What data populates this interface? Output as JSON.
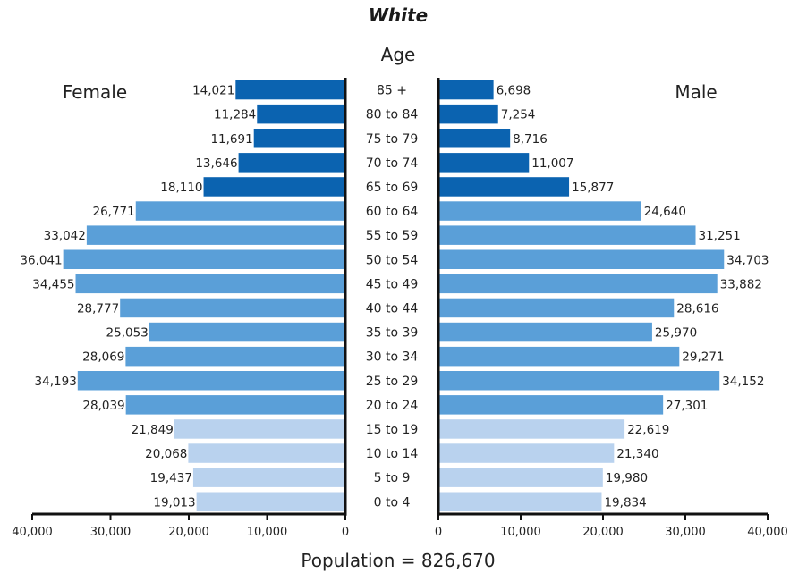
{
  "chart_data": {
    "type": "bar",
    "orientation": "horizontal",
    "title": "White",
    "center_label": "Age",
    "left_label": "Female",
    "right_label": "Male",
    "footer": "Population = 826,670",
    "categories": [
      "85 +",
      "80 to 84",
      "75 to 79",
      "70 to 74",
      "65 to 69",
      "60 to 64",
      "55 to 59",
      "50 to 54",
      "45 to 49",
      "40 to 44",
      "35 to 39",
      "30 to 34",
      "25 to 29",
      "20 to 24",
      "15 to 19",
      "10 to 14",
      "5 to 9",
      "0 to 4"
    ],
    "series": [
      {
        "name": "Female",
        "side": "left",
        "values": [
          14021,
          11284,
          11691,
          13646,
          18110,
          26771,
          33042,
          36041,
          34455,
          28777,
          25053,
          28069,
          34193,
          28039,
          21849,
          20068,
          19437,
          19013
        ],
        "value_labels": [
          "14,021",
          "11,284",
          "11,691",
          "13,646",
          "18,110",
          "26,771",
          "33,042",
          "36,041",
          "34,455",
          "28,777",
          "25,053",
          "28,069",
          "34,193",
          "28,039",
          "21,849",
          "20,068",
          "19,437",
          "19,013"
        ]
      },
      {
        "name": "Male",
        "side": "right",
        "values": [
          6698,
          7254,
          8716,
          11007,
          15877,
          24640,
          31251,
          34703,
          33882,
          28616,
          25970,
          29271,
          34152,
          27301,
          22619,
          21340,
          19980,
          19834
        ],
        "value_labels": [
          "6,698",
          "7,254",
          "8,716",
          "11,007",
          "15,877",
          "24,640",
          "31,251",
          "34,703",
          "33,882",
          "28,616",
          "25,970",
          "29,271",
          "34,152",
          "27,301",
          "22,619",
          "21,340",
          "19,980",
          "19,834"
        ]
      }
    ],
    "age_group_colors": [
      "#0b63b0",
      "#0b63b0",
      "#0b63b0",
      "#0b63b0",
      "#0b63b0",
      "#5a9fd8",
      "#5a9fd8",
      "#5a9fd8",
      "#5a9fd8",
      "#5a9fd8",
      "#5a9fd8",
      "#5a9fd8",
      "#5a9fd8",
      "#5a9fd8",
      "#b9d2ee",
      "#b9d2ee",
      "#b9d2ee",
      "#b9d2ee"
    ],
    "xlim": [
      0,
      40000
    ],
    "x_ticks": [
      0,
      10000,
      20000,
      30000,
      40000
    ],
    "left_tick_labels": [
      "40,000",
      "30,000",
      "20,000",
      "10,000",
      "0"
    ],
    "right_tick_labels": [
      "0",
      "10,000",
      "20,000",
      "30,000",
      "40,000"
    ],
    "grid": false,
    "legend": "none"
  }
}
